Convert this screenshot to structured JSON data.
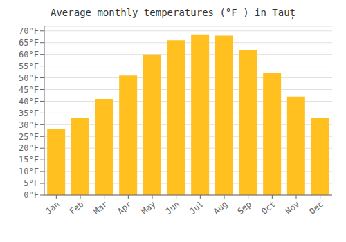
{
  "chart_data": {
    "type": "bar",
    "title": "Average monthly temperatures (°F ) in Tauț",
    "categories": [
      "Jan",
      "Feb",
      "Mar",
      "Apr",
      "May",
      "Jun",
      "Jul",
      "Aug",
      "Sep",
      "Oct",
      "Nov",
      "Dec"
    ],
    "values": [
      28,
      33,
      41,
      51,
      60,
      66,
      68.5,
      68,
      62,
      52,
      42,
      33
    ],
    "color": "#FFC020",
    "ylim": [
      0,
      72
    ],
    "yticks": [
      {
        "value": 0,
        "label": "0°F"
      },
      {
        "value": 5,
        "label": "5°F"
      },
      {
        "value": 10,
        "label": "10°F"
      },
      {
        "value": 15,
        "label": "15°F"
      },
      {
        "value": 20,
        "label": "20°F"
      },
      {
        "value": 25,
        "label": "25°F"
      },
      {
        "value": 30,
        "label": "30°F"
      },
      {
        "value": 35,
        "label": "35°F"
      },
      {
        "value": 40,
        "label": "40°F"
      },
      {
        "value": 45,
        "label": "45°F"
      },
      {
        "value": 50,
        "label": "50°F"
      },
      {
        "value": 55,
        "label": "55°F"
      },
      {
        "value": 60,
        "label": "60°F"
      },
      {
        "value": 65,
        "label": "65°F"
      },
      {
        "value": 70,
        "label": "70°F"
      }
    ],
    "grid": true
  }
}
